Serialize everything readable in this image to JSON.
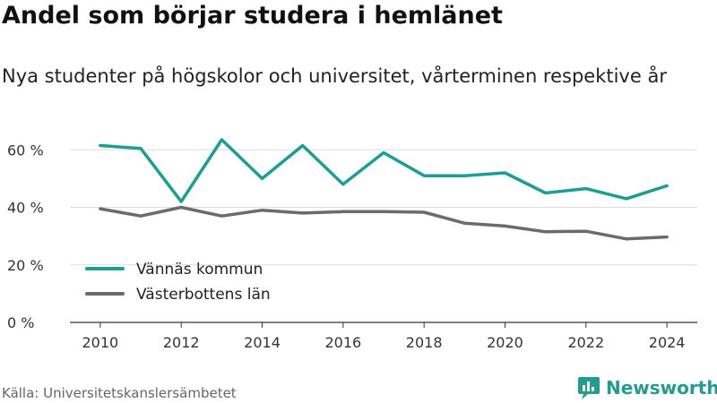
{
  "title": "Andel som börjar studera i hemlänet",
  "subtitle": "Nya studenter på högskolor och universitet, vårterminen respektive år",
  "source": "Källa: Universitetskanslersämbetet",
  "brand": {
    "name": "Newsworthy",
    "color": "#249b91",
    "icon": "newsworthy-logo-icon"
  },
  "chart_data": {
    "type": "line",
    "title": "Andel som börjar studera i hemlänet",
    "subtitle": "Nya studenter på högskolor och universitet, vårterminen respektive år",
    "x": [
      2010,
      2011,
      2012,
      2013,
      2014,
      2015,
      2016,
      2017,
      2018,
      2019,
      2020,
      2021,
      2022,
      2023,
      2024
    ],
    "xticks": [
      "2010",
      "2012",
      "2014",
      "2016",
      "2018",
      "2020",
      "2022",
      "2024"
    ],
    "yticks": [
      "0 %",
      "20 %",
      "40 %",
      "60 %"
    ],
    "xlim": [
      2009.25,
      2024.75
    ],
    "ylim": [
      0,
      66
    ],
    "grid": true,
    "legend_position": "bottom-left",
    "series": [
      {
        "name": "Vännäs kommun",
        "color": "#1a9e95",
        "values": [
          61.5,
          60.5,
          42,
          63.5,
          50,
          61.5,
          48,
          59,
          51,
          51,
          52,
          45,
          46.5,
          43,
          47.5
        ]
      },
      {
        "name": "Västerbottens län",
        "color": "#6b6a70",
        "values": [
          39.5,
          37,
          40,
          37,
          39,
          38,
          38.5,
          38.5,
          38.3,
          34.5,
          33.5,
          31.5,
          31.7,
          29,
          29.7
        ]
      }
    ]
  }
}
